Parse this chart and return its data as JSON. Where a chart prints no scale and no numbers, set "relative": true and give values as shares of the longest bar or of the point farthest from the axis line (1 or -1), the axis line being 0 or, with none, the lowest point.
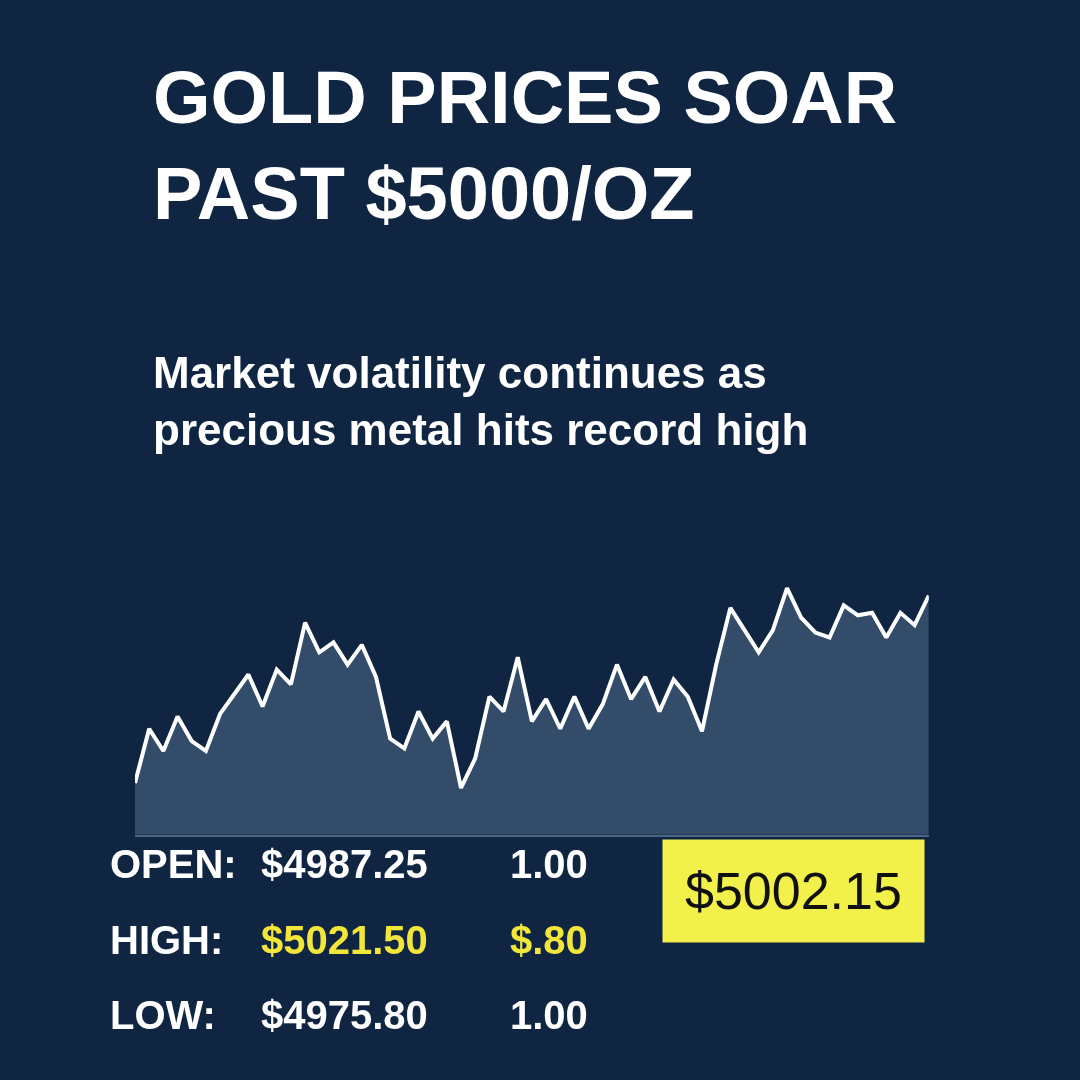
{
  "chart_data": {
    "type": "area",
    "title": "GOLD PRICES SOAR PAST $5000/OZ",
    "subtitle": "Market volatility continues as precious metal hits record high",
    "relative": true,
    "categories": [
      null,
      null,
      null,
      null,
      null,
      null,
      null,
      null,
      null,
      null,
      null,
      null,
      null,
      null,
      null,
      null,
      null,
      null,
      null,
      null,
      null,
      null,
      null,
      null,
      null,
      null,
      null,
      null,
      null,
      null,
      null,
      null,
      null,
      null,
      null,
      null,
      null,
      null,
      null,
      null,
      null,
      null,
      null,
      null,
      null,
      null,
      null,
      null,
      null,
      null,
      null,
      null,
      null,
      null,
      null,
      null,
      null
    ],
    "series": [
      {
        "color": "#ffffff",
        "values": [
          0.21,
          0.43,
          0.34,
          0.48,
          0.38,
          0.34,
          0.49,
          0.57,
          0.65,
          0.52,
          0.67,
          0.61,
          0.86,
          0.74,
          0.78,
          0.69,
          0.77,
          0.64,
          0.39,
          0.35,
          0.5,
          0.39,
          0.46,
          0.19,
          0.31,
          0.56,
          0.5,
          0.72,
          0.46,
          0.55,
          0.43,
          0.56,
          0.43,
          0.53,
          0.69,
          0.55,
          0.64,
          0.5,
          0.63,
          0.56,
          0.42,
          0.69,
          0.92,
          0.83,
          0.74,
          0.83,
          1,
          0.88,
          0.82,
          0.8,
          0.93,
          0.89,
          0.9,
          0.8,
          0.9,
          0.85,
          0.97
        ]
      }
    ],
    "annotations": [
      "OPEN:",
      "$4987.25",
      "1.00",
      "HIGH:",
      "$5021.50",
      "$.80",
      "LOW:",
      "$4975.80",
      "1.00",
      "$5002.15"
    ],
    "grid": false
  }
}
